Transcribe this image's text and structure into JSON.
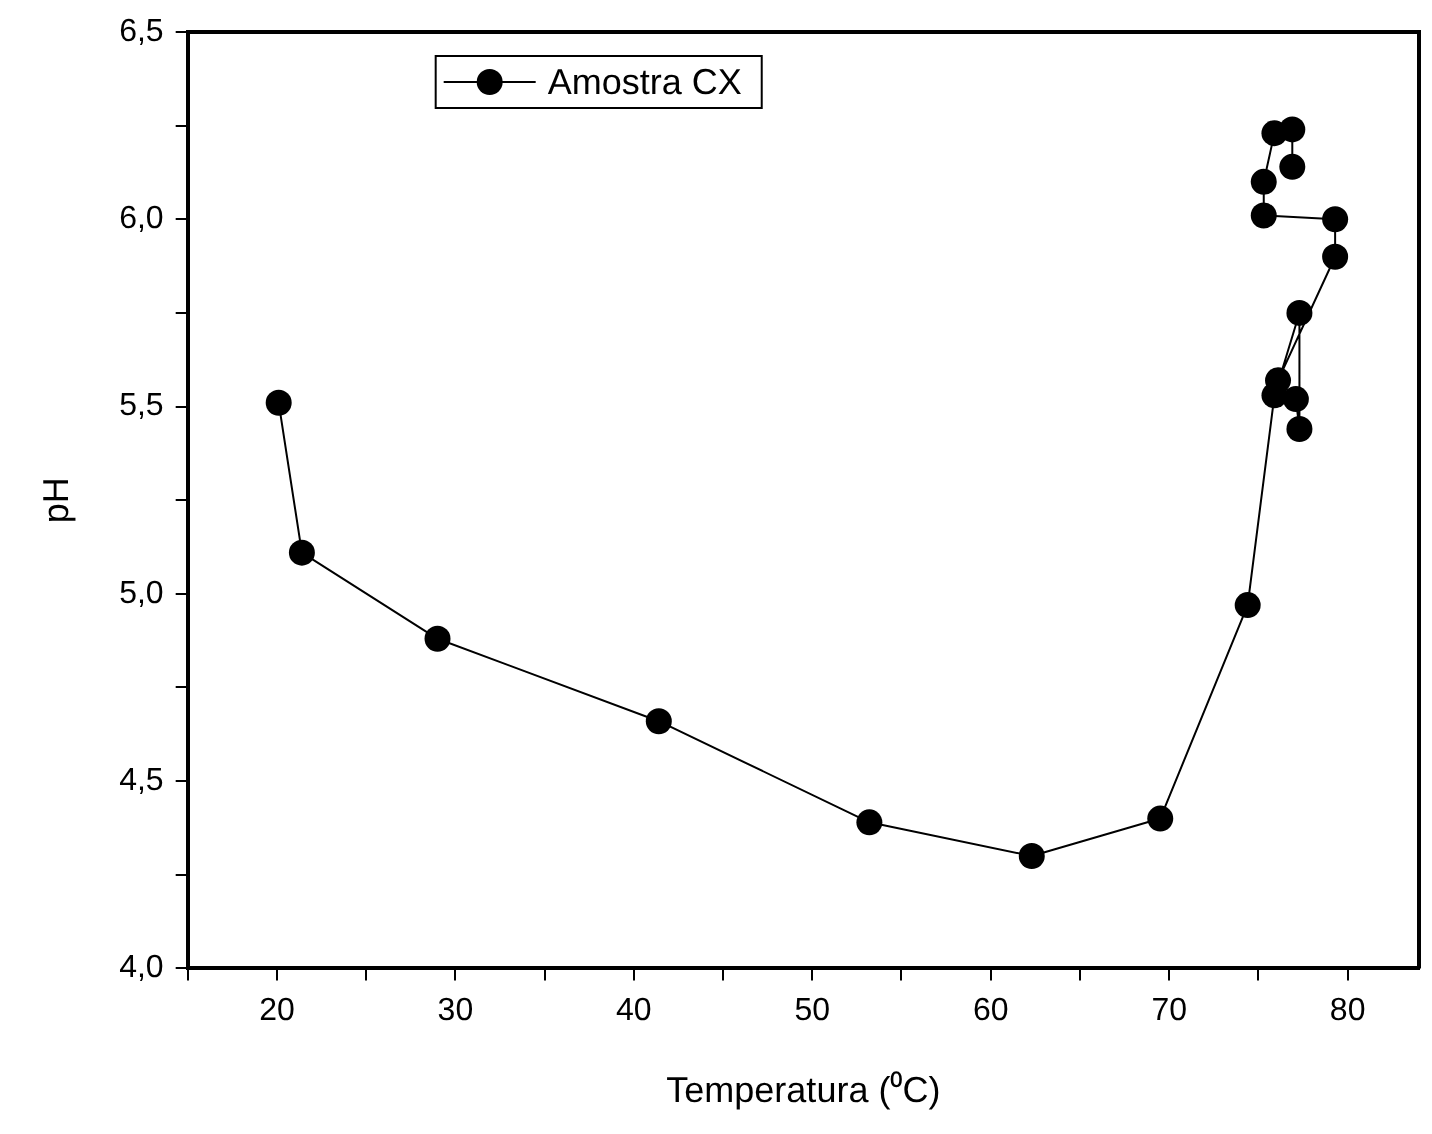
{
  "chart_data": {
    "type": "line",
    "xlabel": "Temperatura (⁰C)",
    "ylabel": "pH",
    "legend": "top left",
    "marker": "circle",
    "line_style": "solid",
    "grid": false,
    "xlim": [
      15,
      84
    ],
    "xticks": [
      {
        "value": 15,
        "label": null
      },
      20,
      {
        "value": 25,
        "label": null
      },
      30,
      {
        "value": 35,
        "label": null
      },
      40,
      {
        "value": 45,
        "label": null
      },
      50,
      {
        "value": 55,
        "label": null
      },
      60,
      {
        "value": 65,
        "label": null
      },
      70,
      {
        "value": 75,
        "label": null
      },
      80
    ],
    "ylim": [
      4,
      6.5
    ],
    "yticks": [
      {
        "value": 4,
        "label": "4,0"
      },
      {
        "value": 4.25,
        "label": null
      },
      {
        "value": 4.5,
        "label": "4,5"
      },
      {
        "value": 4.75,
        "label": null
      },
      {
        "value": 5,
        "label": "5,0"
      },
      {
        "value": 5.25,
        "label": null
      },
      {
        "value": 5.5,
        "label": "5,5"
      },
      {
        "value": 5.75,
        "label": null
      },
      {
        "value": 6,
        "label": "6,0"
      },
      {
        "value": 6.25,
        "label": null
      },
      {
        "value": 6.5,
        "label": "6,5"
      }
    ],
    "series": [
      {
        "name": "Amostra CX",
        "color": "#000000",
        "x": [
          20.1,
          21.4,
          29,
          41.4,
          53.2,
          62.3,
          69.5,
          74.4,
          75.9,
          77.3,
          77.3,
          77.1,
          76.1,
          79.3,
          79.3,
          75.3,
          75.3,
          75.9,
          76.9,
          76.9
        ],
        "values": [
          5.51,
          5.11,
          4.88,
          4.66,
          4.39,
          4.3,
          4.4,
          4.97,
          5.53,
          5.75,
          5.44,
          5.52,
          5.57,
          5.9,
          6.0,
          6.01,
          6.1,
          6.23,
          6.24,
          6.14
        ]
      }
    ]
  }
}
